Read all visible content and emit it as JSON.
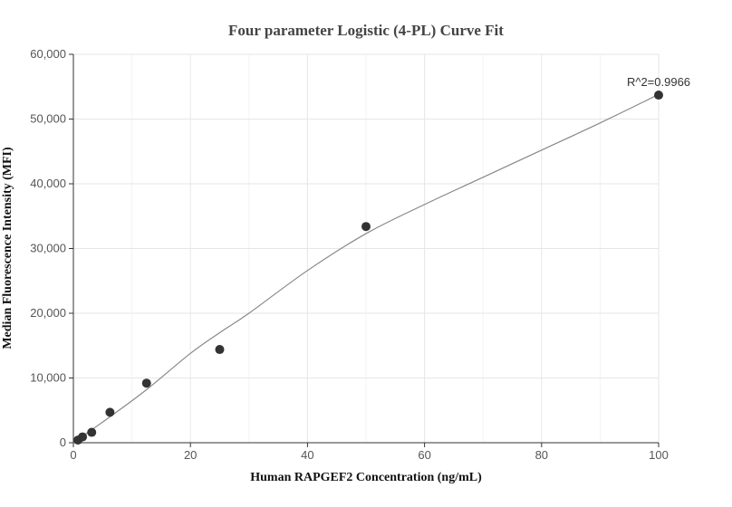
{
  "chart_data": {
    "type": "scatter",
    "title": "Four parameter Logistic (4-PL) Curve Fit",
    "xlabel": "Human RAPGEF2 Concentration (ng/mL)",
    "ylabel": "Median Fluorescence Intensity (MFI)",
    "xlim": [
      0,
      100
    ],
    "ylim": [
      0,
      60000
    ],
    "x_ticks": [
      0,
      20,
      40,
      60,
      80,
      100
    ],
    "x_tick_labels": [
      "0",
      "20",
      "40",
      "60",
      "80",
      "100"
    ],
    "y_ticks": [
      0,
      10000,
      20000,
      30000,
      40000,
      50000,
      60000
    ],
    "y_tick_labels": [
      "0",
      "10,000",
      "20,000",
      "30,000",
      "40,000",
      "50,000",
      "60,000"
    ],
    "grid": true,
    "points": {
      "x": [
        0.78,
        1.56,
        3.13,
        6.25,
        12.5,
        25,
        50,
        100
      ],
      "y": [
        400,
        900,
        1600,
        4700,
        9200,
        14400,
        33400,
        53700
      ]
    },
    "fit_curve": {
      "x": [
        0,
        3.13,
        6.25,
        12.5,
        20,
        25,
        30,
        40,
        50,
        60,
        70,
        80,
        90,
        100
      ],
      "y": [
        0,
        2000,
        4000,
        8200,
        13800,
        17000,
        20000,
        26600,
        32300,
        36800,
        41000,
        45200,
        49400,
        53800
      ]
    },
    "annotation": "R^2=0.9966"
  }
}
